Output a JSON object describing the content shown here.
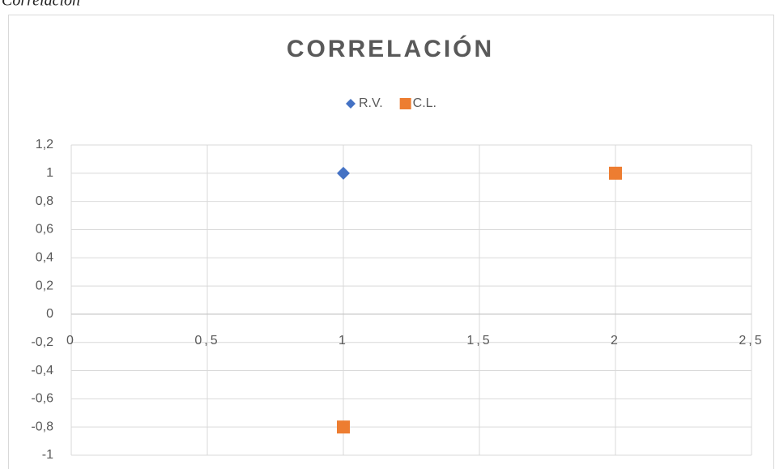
{
  "caption": "Correlación",
  "chart_data": {
    "type": "scatter",
    "title": "CORRELACIÓN",
    "series": [
      {
        "name": "R.V.",
        "color": "#4472c4",
        "marker": "diamond",
        "x": [
          1
        ],
        "values": [
          1
        ]
      },
      {
        "name": "C.L.",
        "color": "#ed7d31",
        "marker": "square",
        "x": [
          2,
          1
        ],
        "values": [
          1,
          -0.8
        ]
      }
    ],
    "xlim": [
      0,
      2.5
    ],
    "xticks": [
      0,
      {
        "value": 0.5,
        "label": "0,5"
      },
      1,
      {
        "value": 1.5,
        "label": "1,5"
      },
      2,
      {
        "value": 2.5,
        "label": "2,5"
      }
    ],
    "ylim": [
      -1,
      1.2
    ],
    "yticks": [
      {
        "value": 1.2,
        "label": "1,2"
      },
      1,
      {
        "value": 0.8,
        "label": "0,8"
      },
      {
        "value": 0.6,
        "label": "0,6"
      },
      {
        "value": 0.4,
        "label": "0,4"
      },
      {
        "value": 0.2,
        "label": "0,2"
      },
      0,
      {
        "value": -0.2,
        "label": "-0,2"
      },
      {
        "value": -0.4,
        "label": "-0,4"
      },
      {
        "value": -0.6,
        "label": "-0,6"
      },
      {
        "value": -0.8,
        "label": "-0,8"
      },
      -1
    ],
    "grid": true,
    "legend": "top"
  }
}
